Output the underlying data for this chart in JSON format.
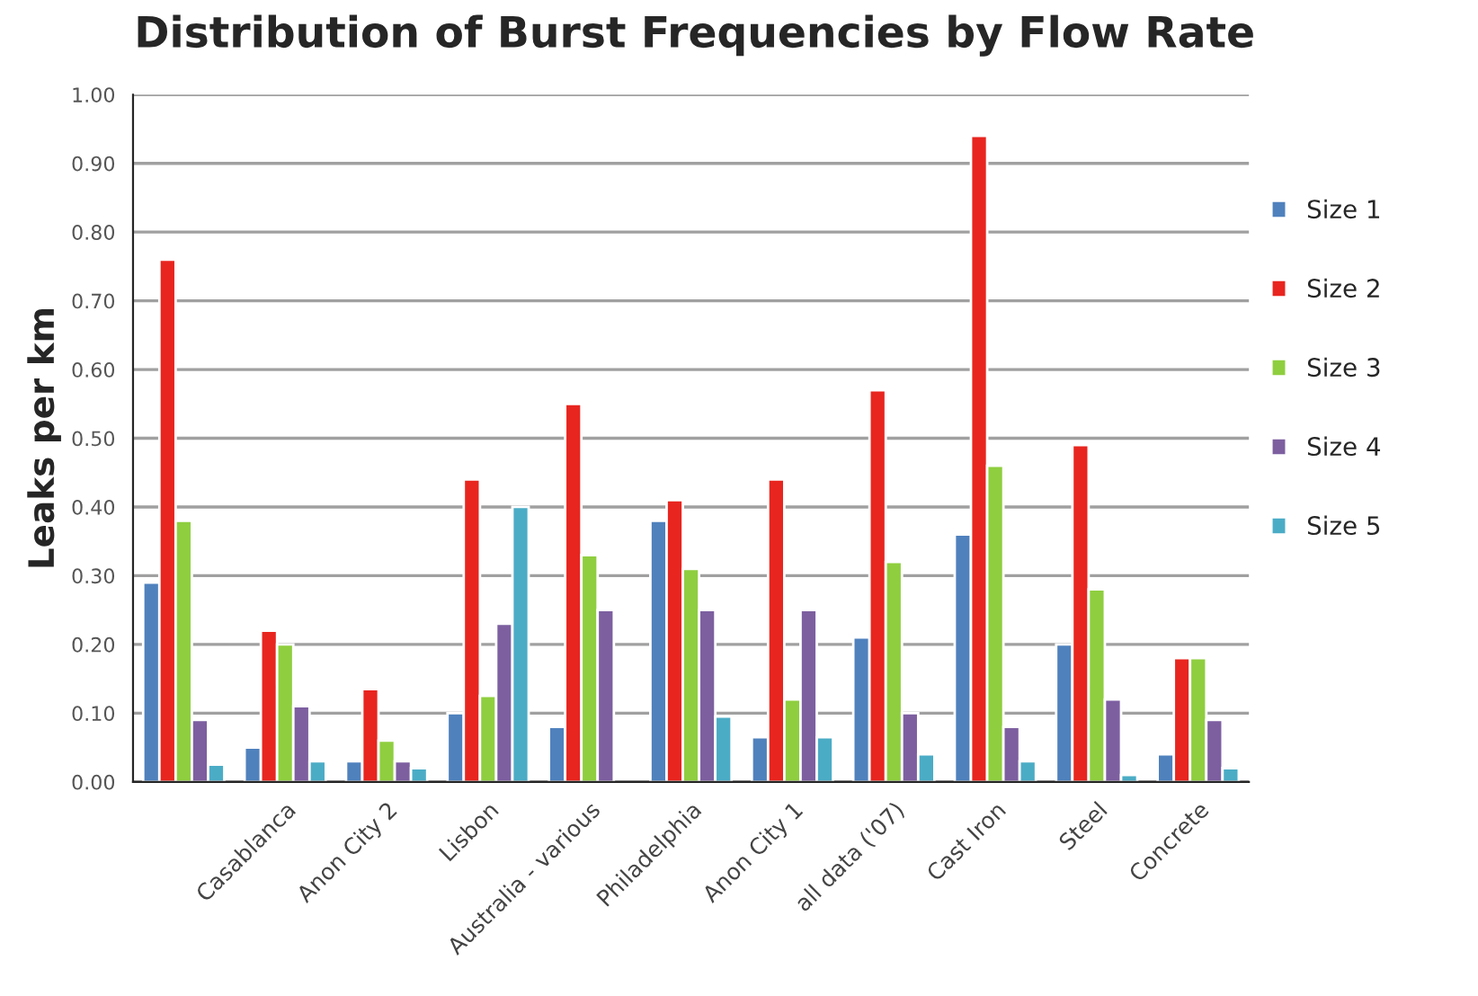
{
  "chart_data": {
    "type": "bar",
    "title": "Distribution of Burst Frequencies by Flow Rate",
    "ylabel": "Leaks per km",
    "categories": [
      null,
      "Casablanca",
      "Anon City 2",
      "Lisbon",
      "Australia - various",
      "Philadelphia",
      "Anon City 1",
      "all data ('07)",
      "Cast Iron",
      "Steel",
      "Concrete"
    ],
    "series": [
      {
        "name": "Size 1",
        "color": "#4f81bd",
        "values": [
          0.29,
          0.05,
          0.03,
          0.1,
          0.08,
          0.38,
          0.065,
          0.21,
          0.36,
          0.2,
          0.04
        ]
      },
      {
        "name": "Size 2",
        "color": "#e8251f",
        "values": [
          0.76,
          0.22,
          0.135,
          0.44,
          0.55,
          0.41,
          0.44,
          0.57,
          0.94,
          0.49,
          0.18
        ]
      },
      {
        "name": "Size 3",
        "color": "#8fce3f",
        "values": [
          0.38,
          0.2,
          0.06,
          0.125,
          0.33,
          0.31,
          0.12,
          0.32,
          0.46,
          0.28,
          0.18
        ]
      },
      {
        "name": "Size 4",
        "color": "#7d5fa0",
        "values": [
          0.09,
          0.11,
          0.03,
          0.23,
          0.25,
          0.25,
          0.25,
          0.1,
          0.08,
          0.12,
          0.09
        ]
      },
      {
        "name": "Size 5",
        "color": "#4bacc6",
        "values": [
          0.025,
          0.03,
          0.02,
          0.4,
          null,
          0.095,
          0.065,
          0.04,
          0.03,
          0.01,
          0.02
        ]
      }
    ],
    "ylim": [
      0,
      1.0
    ],
    "yticks": [
      {
        "value": 0,
        "label": "0.00"
      },
      {
        "value": 0.1,
        "label": "0.10"
      },
      {
        "value": 0.2,
        "label": "0.20"
      },
      {
        "value": 0.3,
        "label": "0.30"
      },
      {
        "value": 0.4,
        "label": "0.40"
      },
      {
        "value": 0.5,
        "label": "0.50"
      },
      {
        "value": 0.6,
        "label": "0.60"
      },
      {
        "value": 0.7,
        "label": "0.70"
      },
      {
        "value": 0.8,
        "label": "0.80"
      },
      {
        "value": 0.9,
        "label": "0.90"
      },
      {
        "value": 1.0,
        "label": "1.00"
      }
    ],
    "grid": "y",
    "legend": "right"
  }
}
